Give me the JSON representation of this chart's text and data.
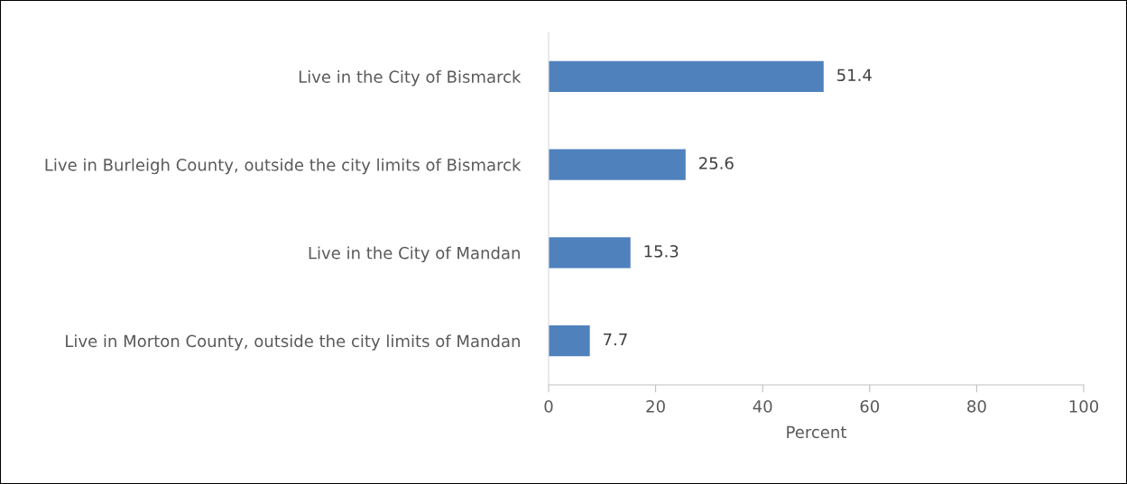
{
  "chart_data": {
    "type": "bar",
    "orientation": "horizontal",
    "xlabel": "Percent",
    "categories": [
      "Live in the City of Bismarck",
      "Live in Burleigh County, outside the city limits of Bismarck",
      "Live in the City of Mandan",
      "Live in Morton County, outside the city limits of Mandan"
    ],
    "values": [
      51.4,
      25.6,
      15.3,
      7.7
    ],
    "color": "#4f81bd",
    "xlim": [
      0,
      100
    ],
    "xticks": [
      0,
      20,
      40,
      60,
      80,
      100
    ],
    "data_labels": true,
    "grid": false,
    "legend": false
  }
}
